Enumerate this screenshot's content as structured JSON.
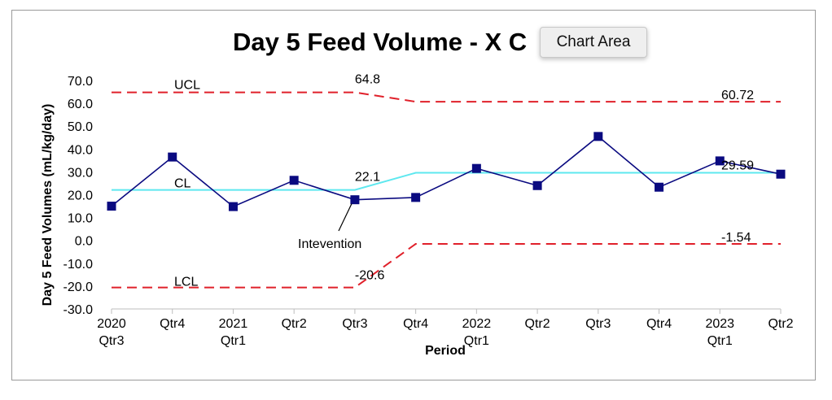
{
  "chart_data": {
    "type": "line",
    "title": "Day 5 Feed Volume - X C",
    "xlabel": "Period",
    "ylabel": "Day 5 Feed Volumes (mL/kg/day)",
    "ylim": [
      -30,
      70
    ],
    "yticks": [
      "70.0",
      "60.0",
      "50.0",
      "40.0",
      "30.0",
      "20.0",
      "10.0",
      "0.0",
      "-10.0",
      "-20.0",
      "-30.0"
    ],
    "categories": [
      [
        "2020",
        "Qtr3"
      ],
      [
        "Qtr4"
      ],
      [
        "2021",
        "Qtr1"
      ],
      [
        "Qtr2"
      ],
      [
        "Qtr3"
      ],
      [
        "Qtr4"
      ],
      [
        "2022",
        "Qtr1"
      ],
      [
        "Qtr2"
      ],
      [
        "Qtr3"
      ],
      [
        "Qtr4"
      ],
      [
        "2023",
        "Qtr1"
      ],
      [
        "Qtr2"
      ]
    ],
    "series": [
      {
        "role": "data",
        "values": [
          15.0,
          36.5,
          14.8,
          26.3,
          17.8,
          18.8,
          31.5,
          24.0,
          45.5,
          23.3,
          34.8,
          29.0
        ],
        "color": "#0a0a80"
      },
      {
        "role": "cl",
        "values": [
          22.1,
          22.1,
          22.1,
          22.1,
          22.1,
          29.59,
          29.59,
          29.59,
          29.59,
          29.59,
          29.59,
          29.59
        ],
        "color": "#5ee8ef"
      },
      {
        "role": "ucl",
        "values": [
          64.8,
          64.8,
          64.8,
          64.8,
          64.8,
          60.72,
          60.72,
          60.72,
          60.72,
          60.72,
          60.72,
          60.72
        ],
        "color": "#e0202a"
      },
      {
        "role": "lcl",
        "values": [
          -20.6,
          -20.6,
          -20.6,
          -20.6,
          -20.6,
          -1.54,
          -1.54,
          -1.54,
          -1.54,
          -1.54,
          -1.54,
          -1.54
        ],
        "color": "#e0202a"
      }
    ],
    "annotations": {
      "ucl_label": "UCL",
      "cl_label": "CL",
      "lcl_label": "LCL",
      "ucl_before": "64.8",
      "ucl_after": "60.72",
      "cl_before": "22.1",
      "cl_after": "29.59",
      "lcl_before": "-20.6",
      "lcl_after": "-1.54",
      "intervention": "Intevention"
    },
    "grid": false,
    "legend": "none"
  },
  "tooltip": {
    "text": "Chart Area"
  }
}
